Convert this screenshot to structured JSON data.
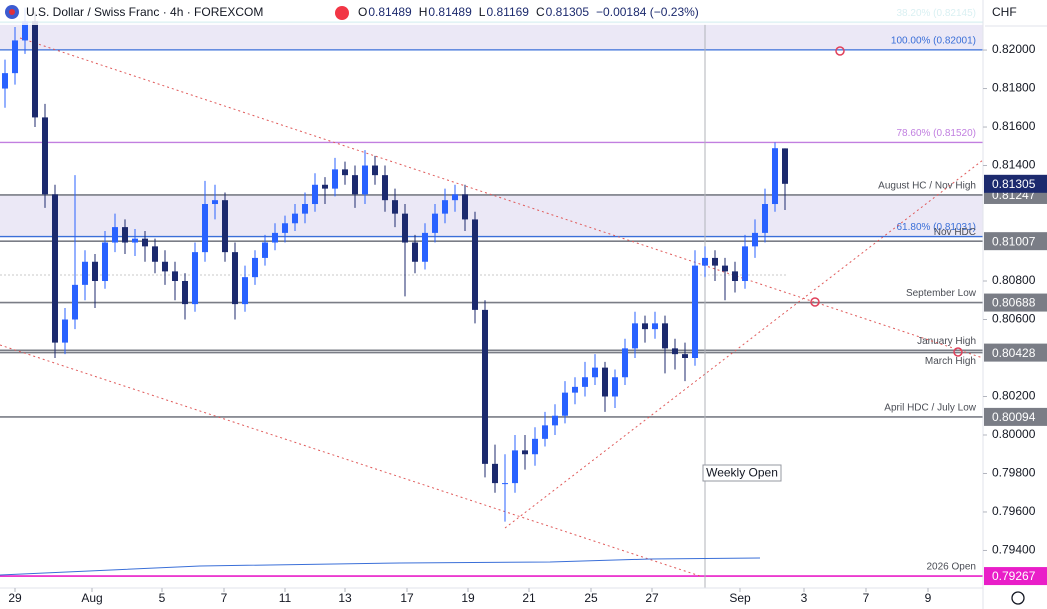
{
  "header": {
    "title": "U.S. Dollar / Swiss Franc · 4h · FOREXCOM",
    "ohlc_letters": [
      "O",
      "H",
      "L",
      "C"
    ],
    "change": "−0.00184 (−0.23%)",
    "currency": "CHF",
    "weekly_open": "Weekly Open"
  },
  "chart_data": {
    "type": "candlestick",
    "up_color": "#2962ff",
    "down_color": "#1c2a6e",
    "ylim": [
      0.79205,
      0.8226
    ],
    "yticks": [
      {
        "value": 0.82,
        "label": "0.82000"
      },
      {
        "value": 0.818,
        "label": "0.81800"
      },
      {
        "value": 0.816,
        "label": "0.81600"
      },
      {
        "value": 0.814,
        "label": "0.81400"
      },
      {
        "value": 0.808,
        "label": "0.80800"
      },
      {
        "value": 0.806,
        "label": "0.80600"
      },
      {
        "value": 0.802,
        "label": "0.80200"
      },
      {
        "value": 0.8,
        "label": "0.80000"
      },
      {
        "value": 0.798,
        "label": "0.79800"
      },
      {
        "value": 0.796,
        "label": "0.79600"
      },
      {
        "value": 0.794,
        "label": "0.79400"
      }
    ],
    "xlim": [
      -0.5,
      97.8
    ],
    "xticks": [
      {
        "value": 1,
        "label": "29"
      },
      {
        "value": 8.7,
        "label": "Aug"
      },
      {
        "value": 15.7,
        "label": "5"
      },
      {
        "value": 21.9,
        "label": "7"
      },
      {
        "value": 28,
        "label": "11"
      },
      {
        "value": 34,
        "label": "13"
      },
      {
        "value": 40.2,
        "label": "17"
      },
      {
        "value": 46.3,
        "label": "19"
      },
      {
        "value": 52.4,
        "label": "21"
      },
      {
        "value": 58.6,
        "label": "25"
      },
      {
        "value": 64.7,
        "label": "27"
      },
      {
        "value": 73.5,
        "label": "Sep"
      },
      {
        "value": 79.9,
        "label": "3"
      },
      {
        "value": 86.1,
        "label": "7"
      },
      {
        "value": 92.3,
        "label": "9"
      }
    ],
    "ohlc": [
      [
        0.818,
        0.8195,
        0.817,
        0.8188
      ],
      [
        0.8188,
        0.8212,
        0.8182,
        0.8205
      ],
      [
        0.8205,
        0.8222,
        0.8198,
        0.8215
      ],
      [
        0.8215,
        0.822,
        0.816,
        0.8165
      ],
      [
        0.8165,
        0.8172,
        0.8118,
        0.8125
      ],
      [
        0.8125,
        0.813,
        0.804,
        0.8048
      ],
      [
        0.8048,
        0.8066,
        0.8042,
        0.806
      ],
      [
        0.806,
        0.8135,
        0.8055,
        0.8078
      ],
      [
        0.8078,
        0.8096,
        0.807,
        0.809
      ],
      [
        0.809,
        0.8094,
        0.8066,
        0.808
      ],
      [
        0.808,
        0.8106,
        0.8076,
        0.81
      ],
      [
        0.81,
        0.8115,
        0.8095,
        0.8108
      ],
      [
        0.8108,
        0.8112,
        0.8094,
        0.81
      ],
      [
        0.81,
        0.8107,
        0.8093,
        0.8102
      ],
      [
        0.8102,
        0.8106,
        0.809,
        0.8098
      ],
      [
        0.8098,
        0.8102,
        0.8084,
        0.809
      ],
      [
        0.809,
        0.8096,
        0.8078,
        0.8085
      ],
      [
        0.8085,
        0.809,
        0.807,
        0.808
      ],
      [
        0.808,
        0.8084,
        0.806,
        0.8068
      ],
      [
        0.8068,
        0.81,
        0.8064,
        0.8095
      ],
      [
        0.8095,
        0.8132,
        0.809,
        0.812
      ],
      [
        0.812,
        0.813,
        0.8112,
        0.8122
      ],
      [
        0.8122,
        0.8126,
        0.809,
        0.8095
      ],
      [
        0.8095,
        0.81,
        0.806,
        0.8068
      ],
      [
        0.8068,
        0.8088,
        0.8064,
        0.8082
      ],
      [
        0.8082,
        0.8096,
        0.8078,
        0.8092
      ],
      [
        0.8092,
        0.8104,
        0.8088,
        0.81
      ],
      [
        0.81,
        0.811,
        0.8096,
        0.8105
      ],
      [
        0.8105,
        0.8114,
        0.81,
        0.811
      ],
      [
        0.811,
        0.812,
        0.8106,
        0.8115
      ],
      [
        0.8115,
        0.8126,
        0.811,
        0.812
      ],
      [
        0.812,
        0.8136,
        0.8116,
        0.813
      ],
      [
        0.813,
        0.8134,
        0.812,
        0.8128
      ],
      [
        0.8128,
        0.8144,
        0.8124,
        0.8138
      ],
      [
        0.8138,
        0.8142,
        0.813,
        0.8135
      ],
      [
        0.8135,
        0.814,
        0.8118,
        0.8125
      ],
      [
        0.8125,
        0.8148,
        0.812,
        0.814
      ],
      [
        0.814,
        0.8145,
        0.813,
        0.8135
      ],
      [
        0.8135,
        0.814,
        0.8116,
        0.8122
      ],
      [
        0.8122,
        0.8128,
        0.8108,
        0.8115
      ],
      [
        0.8115,
        0.812,
        0.8072,
        0.81
      ],
      [
        0.81,
        0.8104,
        0.8084,
        0.809
      ],
      [
        0.809,
        0.811,
        0.8086,
        0.8105
      ],
      [
        0.8105,
        0.812,
        0.81,
        0.8115
      ],
      [
        0.8115,
        0.8128,
        0.811,
        0.8122
      ],
      [
        0.8122,
        0.813,
        0.8116,
        0.8125
      ],
      [
        0.8125,
        0.813,
        0.8106,
        0.8112
      ],
      [
        0.8112,
        0.8116,
        0.8058,
        0.8065
      ],
      [
        0.8065,
        0.807,
        0.7978,
        0.7985
      ],
      [
        0.7985,
        0.7995,
        0.797,
        0.7975
      ],
      [
        0.7975,
        0.799,
        0.7955,
        0.7975
      ],
      [
        0.7975,
        0.8,
        0.797,
        0.7992
      ],
      [
        0.7992,
        0.8,
        0.7982,
        0.799
      ],
      [
        0.799,
        0.8004,
        0.7984,
        0.7998
      ],
      [
        0.7998,
        0.8012,
        0.7994,
        0.8005
      ],
      [
        0.8005,
        0.8016,
        0.8,
        0.801
      ],
      [
        0.801,
        0.8028,
        0.8006,
        0.8022
      ],
      [
        0.8022,
        0.803,
        0.8016,
        0.8025
      ],
      [
        0.8025,
        0.8038,
        0.802,
        0.803
      ],
      [
        0.803,
        0.8042,
        0.8026,
        0.8035
      ],
      [
        0.8035,
        0.8038,
        0.8012,
        0.802
      ],
      [
        0.802,
        0.8034,
        0.8014,
        0.803
      ],
      [
        0.803,
        0.805,
        0.8026,
        0.8045
      ],
      [
        0.8045,
        0.8064,
        0.804,
        0.8058
      ],
      [
        0.8058,
        0.8062,
        0.8048,
        0.8055
      ],
      [
        0.8055,
        0.8064,
        0.805,
        0.8058
      ],
      [
        0.8058,
        0.8062,
        0.8032,
        0.8045
      ],
      [
        0.8045,
        0.805,
        0.8034,
        0.8042
      ],
      [
        0.8042,
        0.8048,
        0.8028,
        0.804
      ],
      [
        0.804,
        0.8096,
        0.8036,
        0.8088
      ],
      [
        0.8088,
        0.8098,
        0.8082,
        0.8092
      ],
      [
        0.8092,
        0.8096,
        0.808,
        0.8088
      ],
      [
        0.8088,
        0.8092,
        0.807,
        0.8085
      ],
      [
        0.8085,
        0.809,
        0.8074,
        0.808
      ],
      [
        0.808,
        0.8104,
        0.8076,
        0.8098
      ],
      [
        0.8098,
        0.8112,
        0.8092,
        0.8105
      ],
      [
        0.8105,
        0.8128,
        0.81,
        0.812
      ],
      [
        0.812,
        0.8152,
        0.8116,
        0.8149
      ],
      [
        0.81489,
        0.81489,
        0.81169,
        0.81305
      ]
    ],
    "levels": [
      {
        "kind": "fib",
        "label": "38.20% (0.82145)",
        "value": 0.82145,
        "color": "#0097a7"
      },
      {
        "kind": "fib",
        "label": "100.00% (0.82001)",
        "value": 0.82001,
        "color": "#3a6fd8"
      },
      {
        "kind": "fib",
        "label": "78.60% (0.81520)",
        "value": 0.8152,
        "color": "#c17fe0"
      },
      {
        "kind": "level",
        "label": "August HC / Nov High",
        "value": 0.81247,
        "color": "#7a7d86",
        "tag": true
      },
      {
        "kind": "fib",
        "label": "61.80% (0.81031)",
        "value": 0.81031,
        "color": "#3a6fd8"
      },
      {
        "kind": "level",
        "label": "Nov HDC",
        "value": 0.81007,
        "color": "#7a7d86",
        "tag": true
      },
      {
        "kind": "level",
        "label": "September Low",
        "value": 0.80688,
        "color": "#7a7d86",
        "tag": true
      },
      {
        "kind": "level",
        "label": "January High",
        "value": 0.8044,
        "color": "#7a7d86",
        "tag": false
      },
      {
        "kind": "level",
        "label": "March High",
        "value": 0.80428,
        "color": "#7a7d86",
        "tag": true,
        "label_pos": "below"
      },
      {
        "kind": "level",
        "label": "April HDC / July Low",
        "value": 0.80094,
        "color": "#7a7d86",
        "tag": true
      },
      {
        "kind": "level",
        "label": "2026 Open",
        "value": 0.79267,
        "color": "#e91ec8",
        "tag": true
      }
    ],
    "zones": [
      [
        0,
        1
      ],
      [
        3,
        4
      ]
    ],
    "zone_color": "#ebe8f6"
  }
}
